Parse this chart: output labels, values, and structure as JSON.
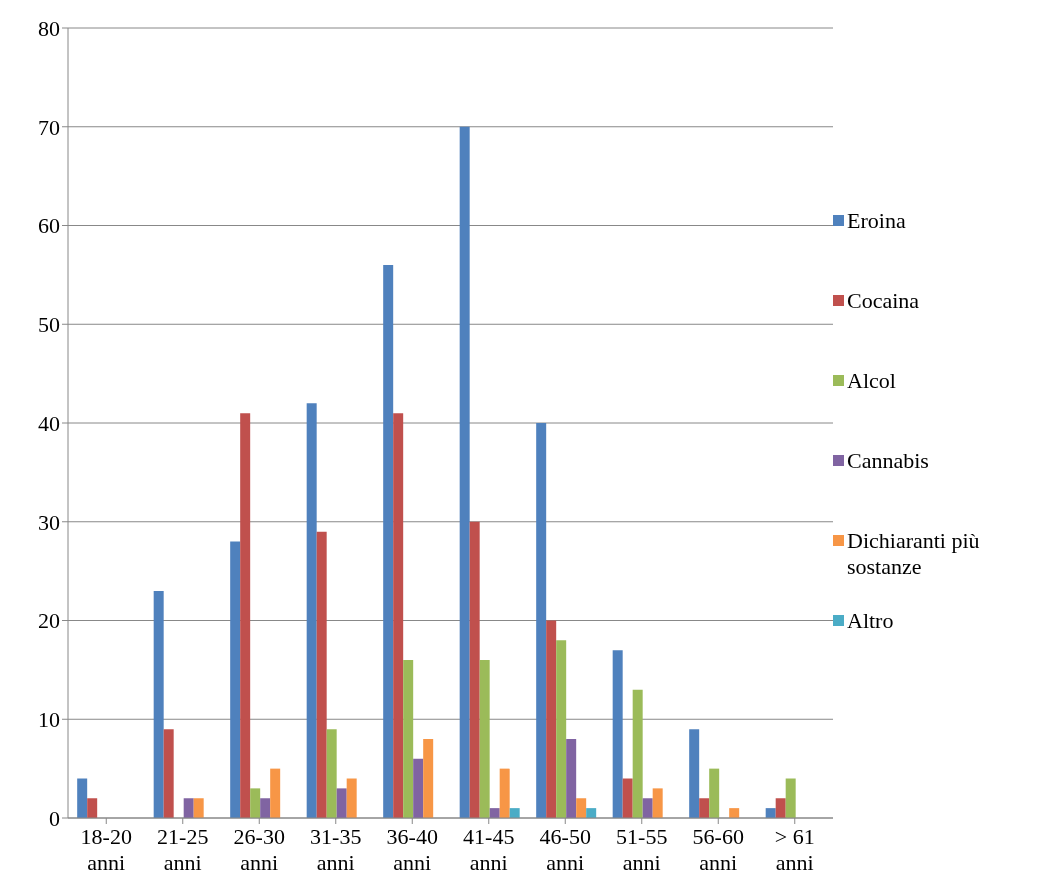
{
  "chart_data": {
    "type": "bar",
    "categories": [
      "18-20 anni",
      "21-25 anni",
      "26-30 anni",
      "31-35 anni",
      "36-40 anni",
      "41-45 anni",
      "46-50 anni",
      "51-55 anni",
      "56-60 anni",
      "> 61 anni"
    ],
    "series": [
      {
        "name": "Eroina",
        "color": "#4f81bd",
        "values": [
          4,
          23,
          28,
          42,
          56,
          70,
          40,
          17,
          9,
          1
        ]
      },
      {
        "name": "Cocaina",
        "color": "#c0504d",
        "values": [
          2,
          9,
          41,
          29,
          41,
          30,
          20,
          4,
          2,
          2
        ]
      },
      {
        "name": "Alcol",
        "color": "#9bbb59",
        "values": [
          0,
          0,
          3,
          9,
          16,
          16,
          18,
          13,
          5,
          4
        ]
      },
      {
        "name": "Cannabis",
        "color": "#8064a2",
        "values": [
          0,
          2,
          2,
          3,
          6,
          1,
          8,
          2,
          0,
          0
        ]
      },
      {
        "name": "Dichiaranti più sostanze",
        "color": "#f79646",
        "values": [
          0,
          2,
          5,
          4,
          8,
          5,
          2,
          3,
          1,
          0
        ]
      },
      {
        "name": "Altro",
        "color": "#4bacc6",
        "values": [
          0,
          0,
          0,
          0,
          0,
          1,
          1,
          0,
          0,
          0
        ]
      }
    ],
    "ylim": [
      0,
      80
    ],
    "yticks": [
      0,
      10,
      20,
      30,
      40,
      50,
      60,
      70,
      80
    ],
    "grid": "y",
    "legend": "right"
  }
}
